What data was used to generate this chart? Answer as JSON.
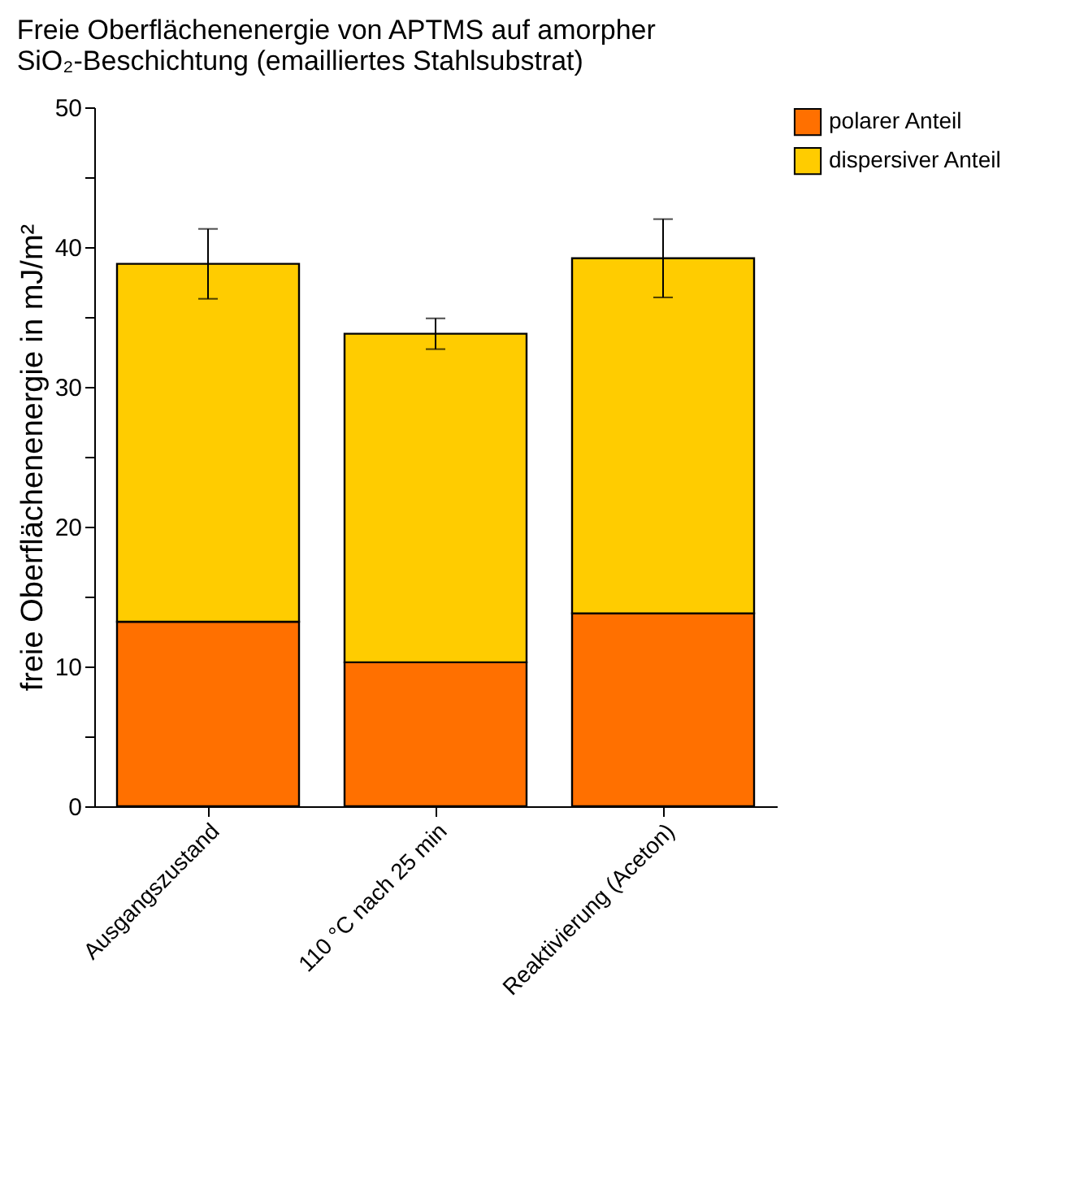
{
  "chart_data": {
    "type": "bar",
    "title": "Freie Oberflächenenergie von APTMS auf amorpher SiO₂-Beschichtung (emailliertes Stahlsubstrat)",
    "ylabel": "freie Oberflächenenergie in mJ/m²",
    "categories": [
      "Ausgangszustand",
      "110 °C nach 25 min",
      "Reaktivierung (Aceton)"
    ],
    "stacked": true,
    "series": [
      {
        "name": "polarer Anteil",
        "color": "#ff7000",
        "values": [
          13.2,
          10.3,
          13.8
        ]
      },
      {
        "name": "dispersiver Anteil",
        "color": "#ffcc00",
        "values": [
          25.6,
          23.5,
          25.4
        ],
        "errors": [
          2.5,
          1.1,
          2.8
        ]
      }
    ],
    "ylim": [
      0,
      50
    ],
    "yticks": [
      0,
      {
        "value": 5,
        "label": null
      },
      10,
      {
        "value": 15,
        "label": null
      },
      20,
      {
        "value": 25,
        "label": null
      },
      30,
      {
        "value": 35,
        "label": null
      },
      40,
      {
        "value": 45,
        "label": null
      },
      50
    ],
    "grid": false,
    "legend": "right"
  }
}
